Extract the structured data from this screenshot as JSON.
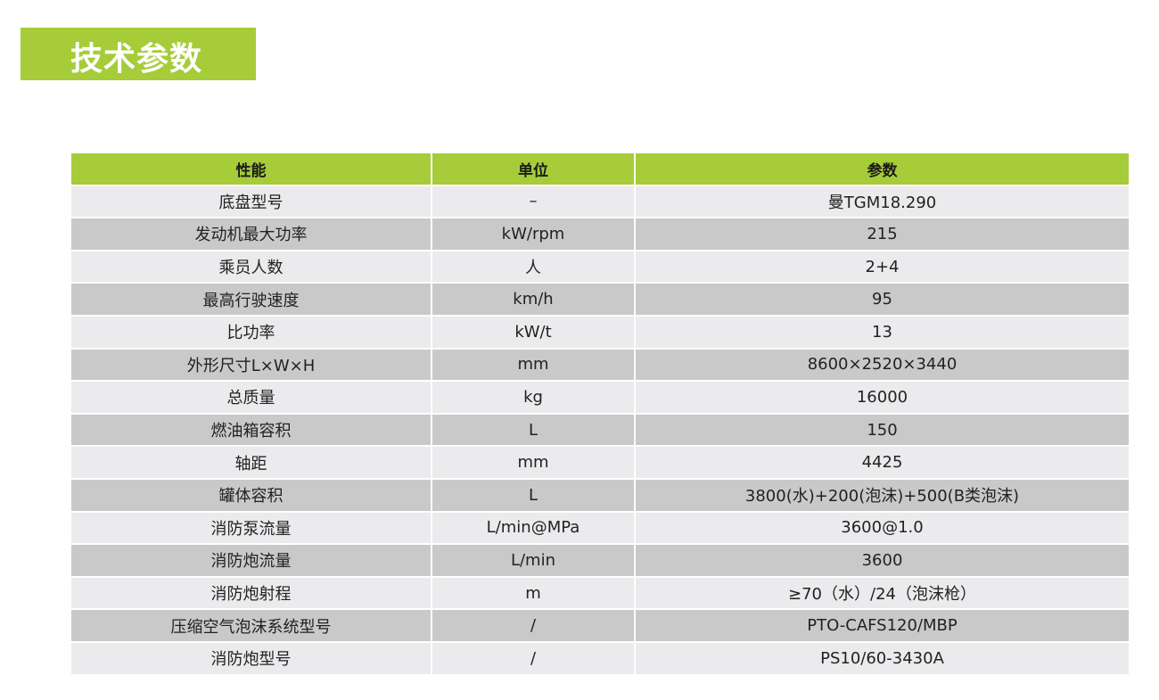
{
  "title": "技术参数",
  "colors": {
    "accent": "#a6cc39",
    "row_light": "#ebebed",
    "row_dark": "#c9c9c9"
  },
  "table": {
    "headers": [
      "性能",
      "单位",
      "参数"
    ],
    "rows": [
      [
        "底盘型号",
        "–",
        "曼TGM18.290"
      ],
      [
        "发动机最大功率",
        "kW/rpm",
        "215"
      ],
      [
        "乘员人数",
        "人",
        "2+4"
      ],
      [
        "最高行驶速度",
        "km/h",
        "95"
      ],
      [
        "比功率",
        "kW/t",
        "13"
      ],
      [
        "外形尺寸L×W×H",
        "mm",
        "8600×2520×3440"
      ],
      [
        "总质量",
        "kg",
        "16000"
      ],
      [
        "燃油箱容积",
        "L",
        "150"
      ],
      [
        "轴距",
        "mm",
        "4425"
      ],
      [
        "罐体容积",
        "L",
        "3800(水)+200(泡沫)+500(B类泡沫)"
      ],
      [
        "消防泵流量",
        "L/min@MPa",
        "3600@1.0"
      ],
      [
        "消防炮流量",
        "L/min",
        "3600"
      ],
      [
        "消防炮射程",
        "m",
        "≥70（水）/24（泡沫枪）"
      ],
      [
        "压缩空气泡沫系统型号",
        "/",
        "PTO-CAFS120/MBP"
      ],
      [
        "消防炮型号",
        "/",
        "PS10/60-3430A"
      ]
    ]
  }
}
